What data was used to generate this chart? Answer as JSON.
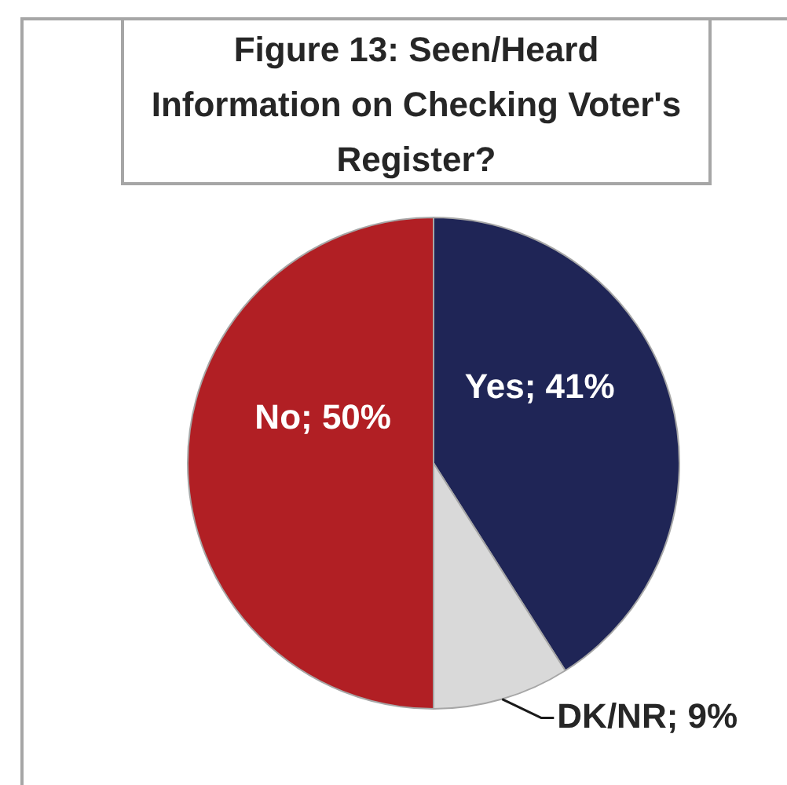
{
  "chart_data": {
    "type": "pie",
    "title": "Figure 13: Seen/Heard Information on Checking Voter's Register?",
    "categories": [
      "Yes",
      "DK/NR",
      "No"
    ],
    "values": [
      41,
      9,
      50
    ],
    "colors": [
      "#1f2556",
      "#d9d9d9",
      "#b11f24"
    ],
    "value_labels": [
      "41%",
      "9%",
      "50%"
    ]
  }
}
